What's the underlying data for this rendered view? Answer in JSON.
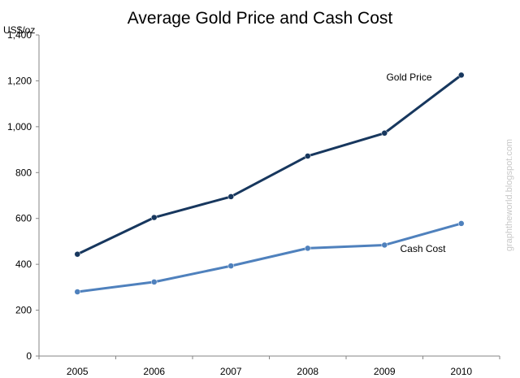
{
  "chart_data": {
    "type": "line",
    "title": "Average Gold Price and Cash Cost",
    "unit_label": "US$/oz",
    "xlabel": "",
    "ylabel": "",
    "categories": [
      "2005",
      "2006",
      "2007",
      "2008",
      "2009",
      "2010"
    ],
    "ylim": [
      0,
      1400
    ],
    "yticks": [
      "0",
      "200",
      "400",
      "600",
      "800",
      "1,000",
      "1,200",
      "1,400"
    ],
    "grid": false,
    "series": [
      {
        "name": "Gold Price",
        "values": [
          444,
          604,
          695,
          872,
          972,
          1225
        ],
        "color": "#17375e"
      },
      {
        "name": "Cash Cost",
        "values": [
          280,
          323,
          393,
          470,
          484,
          578
        ],
        "color": "#4f81bd"
      }
    ],
    "watermark": "graphtheworld.blogspot.com"
  }
}
